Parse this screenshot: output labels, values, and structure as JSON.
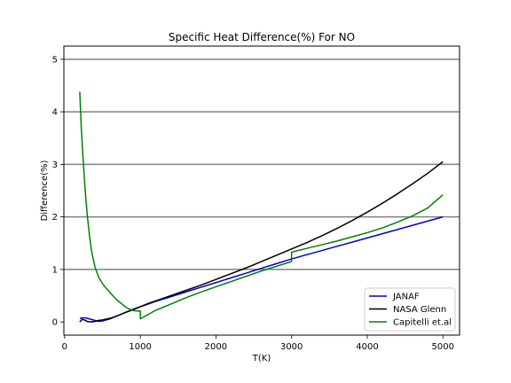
{
  "chart_data": {
    "type": "line",
    "title": "Specific Heat Difference(%) For NO",
    "xlabel": "T(K)",
    "ylabel": "Difference(%)",
    "xlim": [
      -10,
      5220
    ],
    "ylim": [
      -0.25,
      5.25
    ],
    "xticks": [
      0,
      1000,
      2000,
      3000,
      4000,
      5000
    ],
    "yticks": [
      0,
      1,
      2,
      3,
      4,
      5
    ],
    "grid": "horizontal at 1,2,3,4,5",
    "legend_position": "lower-right",
    "series": [
      {
        "name": "JANAF",
        "color": "#0000cc",
        "x": [
          200,
          250,
          300,
          350,
          400,
          450,
          500,
          600,
          700,
          800,
          900,
          1000,
          1100,
          1200,
          1400,
          1600,
          1800,
          2000,
          2200,
          2400,
          2600,
          2800,
          3000,
          3200,
          3400,
          3600,
          3800,
          4000,
          4200,
          4400,
          4600,
          4800,
          5000
        ],
        "y": [
          0.07,
          0.08,
          0.07,
          0.05,
          0.03,
          0.01,
          0.02,
          0.06,
          0.12,
          0.18,
          0.24,
          0.29,
          0.34,
          0.39,
          0.48,
          0.57,
          0.66,
          0.75,
          0.84,
          0.93,
          1.02,
          1.11,
          1.2,
          1.28,
          1.36,
          1.44,
          1.52,
          1.6,
          1.68,
          1.76,
          1.84,
          1.92,
          2.0
        ]
      },
      {
        "name": "NASA Glenn",
        "color": "#000000",
        "x": [
          200,
          230,
          260,
          300,
          350,
          400,
          450,
          500,
          600,
          700,
          800,
          900,
          1000,
          1100,
          1200,
          1400,
          1600,
          1800,
          2000,
          2200,
          2400,
          2600,
          2800,
          3000,
          3200,
          3400,
          3600,
          3800,
          4000,
          4200,
          4400,
          4600,
          4800,
          5000
        ],
        "y": [
          0.0,
          0.05,
          0.04,
          0.01,
          0.0,
          0.01,
          0.03,
          0.04,
          0.07,
          0.12,
          0.18,
          0.23,
          0.29,
          0.35,
          0.4,
          0.5,
          0.6,
          0.7,
          0.81,
          0.92,
          1.03,
          1.15,
          1.27,
          1.39,
          1.51,
          1.64,
          1.78,
          1.93,
          2.09,
          2.26,
          2.44,
          2.63,
          2.83,
          3.05
        ]
      },
      {
        "name": "Capitelli et.al",
        "color": "#008000",
        "x": [
          200,
          220,
          240,
          260,
          280,
          300,
          330,
          360,
          400,
          450,
          500,
          550,
          600,
          650,
          700,
          750,
          800,
          850,
          900,
          950,
          1000,
          1001,
          1100,
          1200,
          1400,
          1600,
          1800,
          2000,
          2200,
          2400,
          2600,
          2800,
          2999,
          3000,
          3200,
          3400,
          3600,
          3800,
          4000,
          4200,
          4400,
          4600,
          4800,
          5000
        ],
        "y": [
          4.38,
          3.7,
          3.2,
          2.75,
          2.35,
          2.02,
          1.62,
          1.32,
          1.05,
          0.85,
          0.73,
          0.64,
          0.56,
          0.48,
          0.41,
          0.35,
          0.29,
          0.25,
          0.22,
          0.21,
          0.21,
          0.06,
          0.14,
          0.22,
          0.34,
          0.46,
          0.57,
          0.67,
          0.77,
          0.87,
          0.97,
          1.06,
          1.15,
          1.33,
          1.4,
          1.47,
          1.54,
          1.62,
          1.7,
          1.79,
          1.9,
          2.02,
          2.17,
          2.42
        ]
      }
    ]
  }
}
